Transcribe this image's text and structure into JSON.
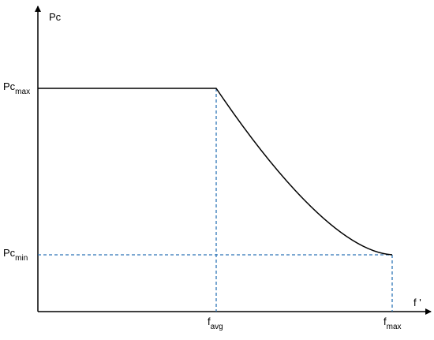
{
  "axes": {
    "y_label": "Pc",
    "x_label": "f '"
  },
  "y_marks": [
    {
      "base": "Pc",
      "sub": "max"
    },
    {
      "base": "Pc",
      "sub": "min"
    }
  ],
  "x_marks": [
    {
      "base": "f",
      "sub": "avg"
    },
    {
      "base": "f",
      "sub": "max"
    }
  ]
}
